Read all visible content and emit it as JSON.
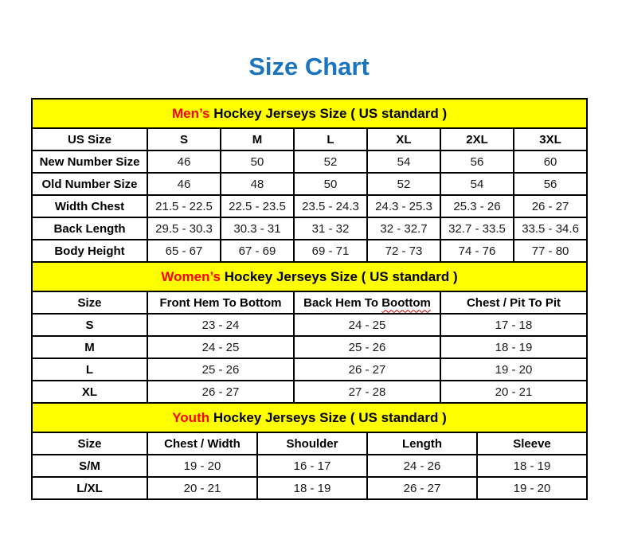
{
  "page": {
    "title": "Size Chart"
  },
  "colors": {
    "title_blue": "#1b74be",
    "accent_red": "#ff0000",
    "section_yellow": "#ffff00",
    "squiggle_red": "#c00000",
    "border_black": "#000000"
  },
  "tables": {
    "mens": {
      "title_accent": "Men’s",
      "title_rest": " Hockey Jerseys Size ( US standard )",
      "columns": [
        "US Size",
        "S",
        "M",
        "L",
        "XL",
        "2XL",
        "3XL"
      ],
      "rows": [
        {
          "label": "New Number Size",
          "values": [
            "46",
            "50",
            "52",
            "54",
            "56",
            "60"
          ]
        },
        {
          "label": "Old Number Size",
          "values": [
            "46",
            "48",
            "50",
            "52",
            "54",
            "56"
          ]
        },
        {
          "label": "Width Chest",
          "values": [
            "21.5 - 22.5",
            "22.5 - 23.5",
            "23.5 - 24.3",
            "24.3 - 25.3",
            "25.3 - 26",
            "26 - 27"
          ]
        },
        {
          "label": "Back Length",
          "values": [
            "29.5 - 30.3",
            "30.3 - 31",
            "31 - 32",
            "32 - 32.7",
            "32.7 - 33.5",
            "33.5 - 34.6"
          ]
        },
        {
          "label": "Body Height",
          "values": [
            "65 - 67",
            "67 - 69",
            "69 - 71",
            "72 - 73",
            "74 - 76",
            "77 - 80"
          ]
        }
      ]
    },
    "womens": {
      "title_accent": "Women’s",
      "title_rest": " Hockey Jerseys Size ( US standard )",
      "columns": [
        "Size",
        "Front Hem To Bottom",
        "Back Hem To Boottom",
        "Chest / Pit To Pit"
      ],
      "misspelling": {
        "col_index": 2,
        "word": "Boottom"
      },
      "rows": [
        {
          "label": "S",
          "values": [
            "23 - 24",
            "24 - 25",
            "17 - 18"
          ]
        },
        {
          "label": "M",
          "values": [
            "24 - 25",
            "25 - 26",
            "18 - 19"
          ]
        },
        {
          "label": "L",
          "values": [
            "25 - 26",
            "26 - 27",
            "19 - 20"
          ]
        },
        {
          "label": "XL",
          "values": [
            "26 - 27",
            "27 - 28",
            "20 - 21"
          ]
        }
      ]
    },
    "youth": {
      "title_accent": "Youth",
      "title_rest": " Hockey Jerseys Size ( US standard )",
      "columns": [
        "Size",
        "Chest / Width",
        "Shoulder",
        "Length",
        "Sleeve"
      ],
      "rows": [
        {
          "label": "S/M",
          "values": [
            "19 - 20",
            "16 - 17",
            "24 - 26",
            "18 - 19"
          ]
        },
        {
          "label": "L/XL",
          "values": [
            "20 - 21",
            "18 - 19",
            "26 - 27",
            "19 - 20"
          ]
        }
      ]
    }
  }
}
